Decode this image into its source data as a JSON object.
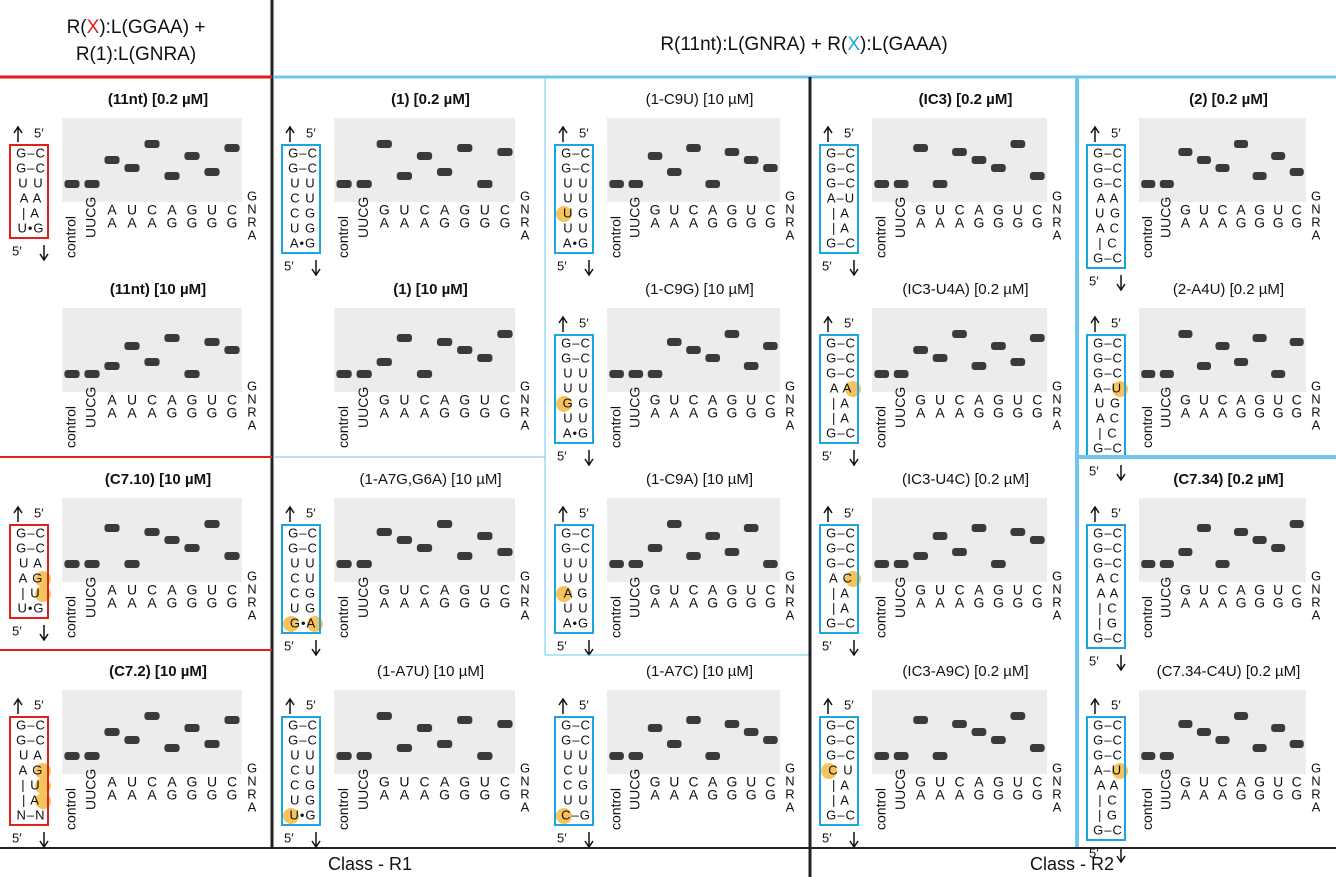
{
  "header": {
    "left_line1": [
      "R(",
      "X",
      "):L(GGAA) +"
    ],
    "left_line2": "R(1):L(GNRA)",
    "right": [
      "R(11nt):L(GNRA) + R(",
      "X",
      "):L(GAAA)"
    ]
  },
  "footer": {
    "left": "Class - R1",
    "right": "Class - R2"
  },
  "lane_names": {
    "control": "control",
    "uucg": "UUCG",
    "gnra": [
      "G",
      "N",
      "R",
      "A"
    ],
    "five_prime": "5′"
  },
  "columns": [
    {
      "color": "#e0201b",
      "lanes_top": [
        "A",
        "U",
        "C",
        "A",
        "G",
        "U",
        "C"
      ],
      "lanes_bottom": [
        "A",
        "A",
        "A",
        "G",
        "G",
        "G",
        "G"
      ],
      "panels": [
        {
          "title": "(11nt) [0.2 µM]",
          "bold": true,
          "structure": [
            "G–C",
            "G–C",
            "U U",
            "A A",
            "| A",
            "U•G"
          ]
        },
        {
          "title": "(11nt) [10 µM]",
          "bold": true,
          "structure": []
        },
        {
          "title": "(C7.10) [10 µM]",
          "bold": true,
          "structure": [
            "G–C",
            "G–C",
            "U A",
            "A G",
            "| U",
            "U•G"
          ]
        },
        {
          "title": "(C7.2) [10 µM]",
          "bold": true,
          "structure": [
            "G–C",
            "G–C",
            "U A",
            "A G",
            "| U",
            "| A",
            "N–N"
          ]
        }
      ]
    },
    {
      "color": "#1aa6e0",
      "lanes_top": [
        "G",
        "U",
        "C",
        "A",
        "G",
        "U",
        "C"
      ],
      "lanes_bottom": [
        "A",
        "A",
        "A",
        "G",
        "G",
        "G",
        "G"
      ],
      "panels": [
        {
          "title": "(1) [0.2 µM]",
          "bold": true,
          "structure": [
            "G–C",
            "G–C",
            "U U",
            "C U",
            "C G",
            "U G",
            "A•G"
          ]
        },
        {
          "title": "(1) [10 µM]",
          "bold": true,
          "structure": []
        },
        {
          "title": "(1-A7G,G6A) [10 µM]",
          "bold": false,
          "structure": [
            "G–C",
            "G–C",
            "U U",
            "C U",
            "C G",
            "U G",
            "G•A"
          ]
        },
        {
          "title": "(1-A7U) [10 µM]",
          "bold": false,
          "structure": [
            "G–C",
            "G–C",
            "U U",
            "C U",
            "C G",
            "U G",
            "U•G"
          ]
        }
      ]
    },
    {
      "color": "#1aa6e0",
      "lanes_top": [
        "G",
        "U",
        "C",
        "A",
        "G",
        "U",
        "C"
      ],
      "lanes_bottom": [
        "A",
        "A",
        "A",
        "G",
        "G",
        "G",
        "G"
      ],
      "panels": [
        {
          "title": "(1-C9U) [10 µM]",
          "bold": false,
          "structure": [
            "G–C",
            "G–C",
            "U U",
            "U U",
            "U G",
            "U U",
            "A•G"
          ]
        },
        {
          "title": "(1-C9G) [10 µM]",
          "bold": false,
          "structure": [
            "G–C",
            "G–C",
            "U U",
            "U U",
            "G G",
            "U U",
            "A•G"
          ]
        },
        {
          "title": "(1-C9A) [10 µM]",
          "bold": false,
          "structure": [
            "G–C",
            "G–C",
            "U U",
            "U U",
            "A G",
            "U U",
            "A•G"
          ]
        },
        {
          "title": "(1-A7C) [10 µM]",
          "bold": false,
          "structure": [
            "G–C",
            "G–C",
            "U U",
            "C U",
            "C G",
            "U U",
            "C–G"
          ]
        }
      ]
    },
    {
      "color": "#1aa6e0",
      "lanes_top": [
        "G",
        "U",
        "C",
        "A",
        "G",
        "U",
        "C"
      ],
      "lanes_bottom": [
        "A",
        "A",
        "A",
        "G",
        "G",
        "G",
        "G"
      ],
      "panels": [
        {
          "title": "(IC3) [0.2 µM]",
          "bold": true,
          "structure": [
            "G–C",
            "G–C",
            "G–C",
            "A–U",
            "| A",
            "| A",
            "G–C"
          ]
        },
        {
          "title": "(IC3-U4A) [0.2 µM]",
          "bold": false,
          "structure": [
            "G–C",
            "G–C",
            "G–C",
            "A A",
            "| A",
            "| A",
            "G–C"
          ]
        },
        {
          "title": "(IC3-U4C) [0.2 µM]",
          "bold": false,
          "structure": [
            "G–C",
            "G–C",
            "G–C",
            "A C",
            "| A",
            "| A",
            "G–C"
          ]
        },
        {
          "title": "(IC3-A9C) [0.2 µM]",
          "bold": false,
          "structure": [
            "G–C",
            "G–C",
            "G–C",
            "C U",
            "| A",
            "| A",
            "G–C"
          ]
        }
      ]
    },
    {
      "color": "#1aa6e0",
      "lanes_top": [
        "G",
        "U",
        "C",
        "A",
        "G",
        "U",
        "C"
      ],
      "lanes_bottom": [
        "A",
        "A",
        "A",
        "G",
        "G",
        "G",
        "G"
      ],
      "panels": [
        {
          "title": "(2) [0.2 µM]",
          "bold": true,
          "structure": [
            "G–C",
            "G–C",
            "G–C",
            "A A",
            "U G",
            "A C",
            "| C",
            "G–C"
          ]
        },
        {
          "title": "(2-A4U) [0.2 µM]",
          "bold": false,
          "structure": [
            "G–C",
            "G–C",
            "G–C",
            "A–U",
            "U G",
            "A C",
            "| C",
            "G–C"
          ]
        },
        {
          "title": "(C7.34) [0.2 µM]",
          "bold": true,
          "structure": [
            "G–C",
            "G–C",
            "G–C",
            "A C",
            "A A",
            "| C",
            "| G",
            "G–C"
          ]
        },
        {
          "title": "(C7.34-C4U) [0.2 µM]",
          "bold": false,
          "structure": [
            "G–C",
            "G–C",
            "G–C",
            "A–U",
            "A A",
            "| C",
            "| G",
            "G–C"
          ]
        }
      ]
    }
  ]
}
